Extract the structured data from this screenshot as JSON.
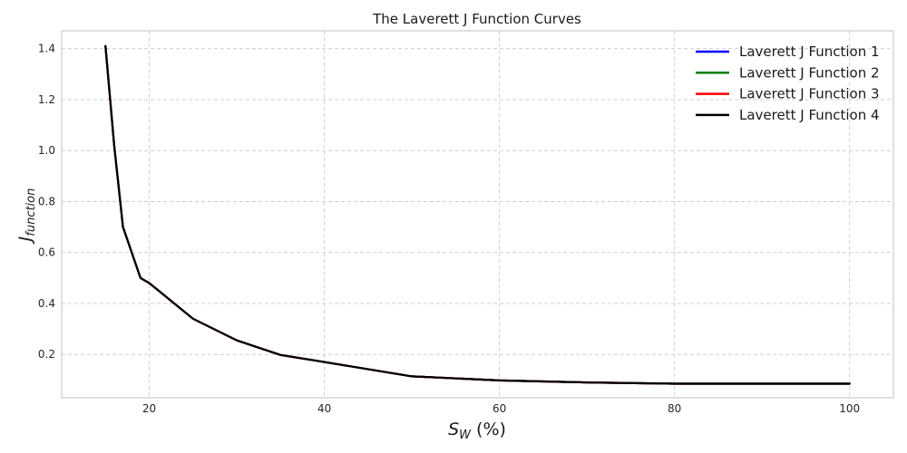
{
  "chart_data": {
    "type": "line",
    "title": "The Laverett J Function Curves",
    "xlabel": {
      "main": "S",
      "sub": "W",
      "suffix": " (%)"
    },
    "ylabel": {
      "main": "J",
      "sub": "function"
    },
    "xlim": [
      10,
      105
    ],
    "ylim": [
      0.03,
      1.47
    ],
    "xticks": [
      20,
      40,
      60,
      80,
      100
    ],
    "yticks": [
      0.2,
      0.4,
      0.6,
      0.8,
      1.0,
      1.2,
      1.4
    ],
    "grid": true,
    "legend_position": "top-right",
    "x": [
      15,
      16,
      17,
      19,
      20,
      25,
      30,
      35,
      40,
      50,
      60,
      70,
      80,
      90,
      100
    ],
    "series": [
      {
        "name": "Laverett J Function 1",
        "color": "#0000ff",
        "values": [
          1.41,
          1.02,
          0.7,
          0.5,
          0.48,
          0.34,
          0.255,
          0.198,
          0.17,
          0.114,
          0.098,
          0.09,
          0.085,
          0.085,
          0.085
        ]
      },
      {
        "name": "Laverett J Function 2",
        "color": "#008000",
        "values": [
          1.41,
          1.02,
          0.7,
          0.5,
          0.48,
          0.34,
          0.255,
          0.198,
          0.17,
          0.114,
          0.098,
          0.09,
          0.085,
          0.085,
          0.085
        ]
      },
      {
        "name": "Laverett J Function 3",
        "color": "#ff0000",
        "values": [
          1.41,
          1.02,
          0.7,
          0.5,
          0.48,
          0.34,
          0.255,
          0.198,
          0.17,
          0.114,
          0.098,
          0.09,
          0.085,
          0.085,
          0.085
        ]
      },
      {
        "name": "Laverett J Function 4",
        "color": "#000000",
        "values": [
          1.41,
          1.02,
          0.7,
          0.5,
          0.48,
          0.34,
          0.255,
          0.198,
          0.17,
          0.114,
          0.098,
          0.09,
          0.085,
          0.085,
          0.085
        ]
      }
    ]
  }
}
